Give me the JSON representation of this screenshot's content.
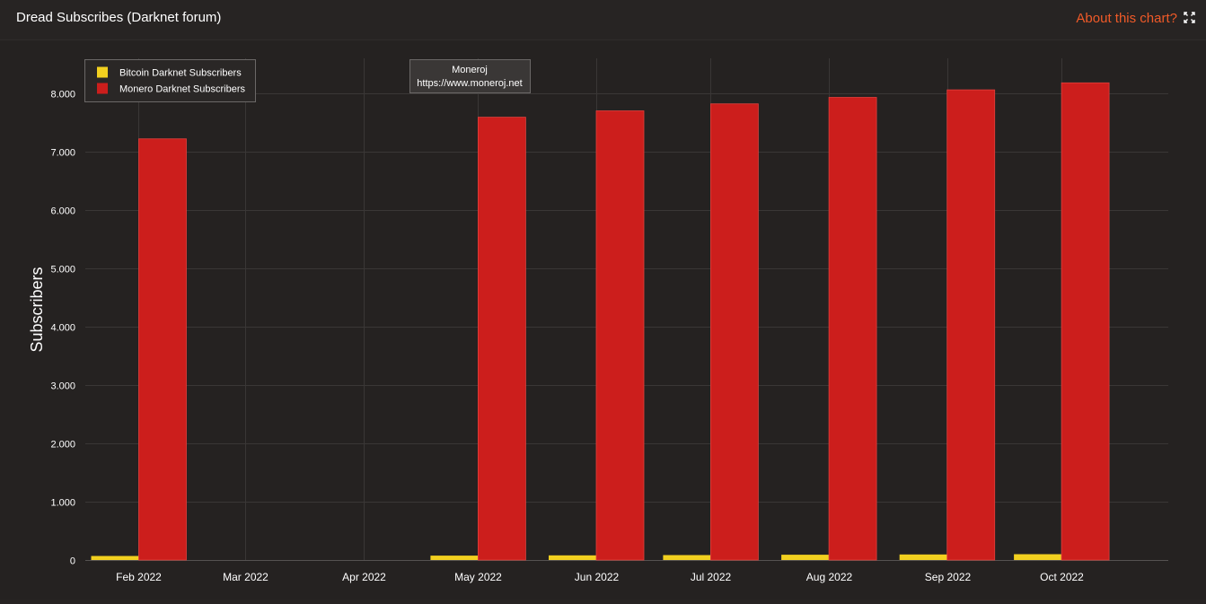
{
  "header": {
    "title": "Dread Subscribes (Darknet forum)",
    "about_label": "About this chart?",
    "expand_icon": "expand-icon"
  },
  "colors": {
    "background": "#272423",
    "bitcoin": "#f2d01f",
    "monero": "#cc1e1c",
    "accent": "#f05a28",
    "grid": "#3a3736"
  },
  "watermark": {
    "line1": "Moneroj",
    "line2": "https://www.moneroj.net"
  },
  "chart_data": {
    "type": "bar",
    "title": "",
    "xlabel": "",
    "ylabel": "Subscribers",
    "ylim": [
      0,
      8600
    ],
    "yticks": [
      0,
      1000,
      2000,
      3000,
      4000,
      5000,
      6000,
      7000,
      8000
    ],
    "ytick_labels": [
      "0",
      "1.000",
      "2.000",
      "3.000",
      "4.000",
      "5.000",
      "6.000",
      "7.000",
      "8.000"
    ],
    "x": [
      "2022-02-01",
      "2022-05-01",
      "2022-06-01",
      "2022-07-01",
      "2022-08-01",
      "2022-09-01",
      "2022-10-01"
    ],
    "xticks": [
      "2022-02-01",
      "2022-03-01",
      "2022-04-01",
      "2022-05-01",
      "2022-06-01",
      "2022-07-01",
      "2022-08-01",
      "2022-09-01",
      "2022-10-01"
    ],
    "xtick_labels": [
      "Feb 2022",
      "Mar 2022",
      "Apr 2022",
      "May 2022",
      "Jun 2022",
      "Jul 2022",
      "Aug 2022",
      "Sep 2022",
      "Oct 2022"
    ],
    "series": [
      {
        "name": "Bitcoin Darknet Subscribers",
        "color": "#f2d01f",
        "values": [
          70,
          75,
          80,
          85,
          90,
          95,
          100
        ]
      },
      {
        "name": "Monero Darknet Subscribers",
        "color": "#cc1e1c",
        "values": [
          7220,
          7590,
          7700,
          7820,
          7930,
          8060,
          8180
        ]
      }
    ],
    "grid": true,
    "legend_position": "top-left"
  }
}
